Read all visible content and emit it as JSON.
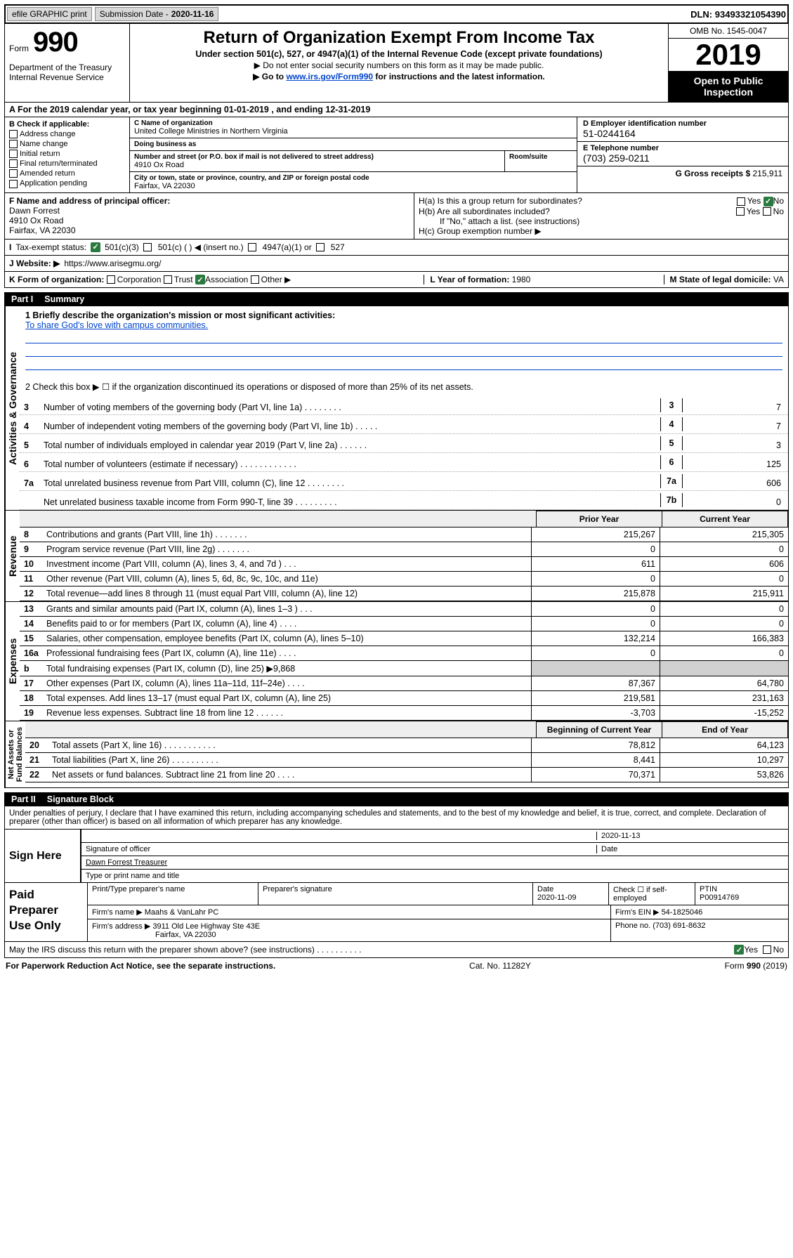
{
  "top_bar": {
    "efile_label": "efile GRAPHIC print",
    "sub_date_label": "Submission Date - ",
    "sub_date": "2020-11-16",
    "dln_label": "DLN: ",
    "dln": "93493321054390"
  },
  "header": {
    "form_word": "Form",
    "form_num": "990",
    "dept": "Department of the Treasury\nInternal Revenue Service",
    "title": "Return of Organization Exempt From Income Tax",
    "subtitle": "Under section 501(c), 527, or 4947(a)(1) of the Internal Revenue Code (except private foundations)",
    "ssn_note": "▶ Do not enter social security numbers on this form as it may be made public.",
    "goto_pre": "▶ Go to ",
    "goto_link": "www.irs.gov/Form990",
    "goto_post": " for instructions and the latest information.",
    "omb": "OMB No. 1545-0047",
    "year": "2019",
    "open": "Open to Public Inspection"
  },
  "period": "A  For the 2019 calendar year, or tax year beginning 01-01-2019    , and ending 12-31-2019",
  "check_if": {
    "header": "B Check if applicable:",
    "items": [
      "Address change",
      "Name change",
      "Initial return",
      "Final return/terminated",
      "Amended return",
      "Application pending"
    ]
  },
  "entity": {
    "name_lbl": "C Name of organization",
    "name": "United College Ministries in Northern Virginia",
    "dba_lbl": "Doing business as",
    "dba": "",
    "addr_lbl": "Number and street (or P.O. box if mail is not delivered to street address)",
    "addr": "4910 Ox Road",
    "room_lbl": "Room/suite",
    "city_lbl": "City or town, state or province, country, and ZIP or foreign postal code",
    "city": "Fairfax, VA  22030"
  },
  "right": {
    "ein_lbl": "D Employer identification number",
    "ein": "51-0244164",
    "tel_lbl": "E Telephone number",
    "tel": "(703) 259-0211",
    "gross_lbl": "G Gross receipts $ ",
    "gross": "215,911"
  },
  "officer": {
    "lbl": "F  Name and address of principal officer:",
    "name": "Dawn Forrest",
    "addr1": "4910 Ox Road",
    "addr2": "Fairfax, VA  22030"
  },
  "group": {
    "ha": "H(a)  Is this a group return for subordinates?",
    "hb": "H(b)  Are all subordinates included?",
    "hb_note": "If \"No,\" attach a list. (see instructions)",
    "hc": "H(c)  Group exemption number ▶",
    "yes": "Yes",
    "no": "No"
  },
  "status": {
    "lbl": "Tax-exempt status:",
    "o1": "501(c)(3)",
    "o2": "501(c) (   ) ◀ (insert no.)",
    "o3": "4947(a)(1) or",
    "o4": "527"
  },
  "website": {
    "lbl": "J   Website: ▶",
    "val": "https://www.arisegmu.org/"
  },
  "form_org": {
    "lbl": "K Form of organization:",
    "corp": "Corporation",
    "trust": "Trust",
    "assoc": "Association",
    "other": "Other ▶",
    "year_lbl": "L Year of formation: ",
    "year": "1980",
    "state_lbl": "M State of legal domicile: ",
    "state": "VA"
  },
  "parts": {
    "p1": "Part I",
    "p1t": "Summary",
    "p2": "Part II",
    "p2t": "Signature Block"
  },
  "summary": {
    "q1": "1   Briefly describe the organization's mission or most significant activities:",
    "mission": "To share God's love with campus communities.",
    "q2": "2    Check this box ▶ ☐  if the organization discontinued its operations or disposed of more than 25% of its net assets.",
    "lines_single": [
      {
        "n": "3",
        "d": "Number of voting members of the governing body (Part VI, line 1a)   .    .    .    .    .    .    .    .",
        "b": "3",
        "v": "7"
      },
      {
        "n": "4",
        "d": "Number of independent voting members of the governing body (Part VI, line 1b)   .    .    .    .    .",
        "b": "4",
        "v": "7"
      },
      {
        "n": "5",
        "d": "Total number of individuals employed in calendar year 2019 (Part V, line 2a)   .    .    .    .    .    .",
        "b": "5",
        "v": "3"
      },
      {
        "n": "6",
        "d": "Total number of volunteers (estimate if necessary)   .    .    .    .    .    .    .    .    .    .    .    .",
        "b": "6",
        "v": "125"
      },
      {
        "n": "7a",
        "d": "Total unrelated business revenue from Part VIII, column (C), line 12   .    .    .    .    .    .    .    .",
        "b": "7a",
        "v": "606"
      },
      {
        "n": "",
        "d": "Net unrelated business taxable income from Form 990-T, line 39   .    .    .    .    .    .    .    .    .",
        "b": "7b",
        "v": "0"
      }
    ],
    "col_hdr": {
      "prior": "Prior Year",
      "current": "Current Year"
    },
    "revenue": [
      {
        "n": "8",
        "d": "Contributions and grants (Part VIII, line 1h)   .    .    .    .    .    .    .",
        "c1": "215,267",
        "c2": "215,305"
      },
      {
        "n": "9",
        "d": "Program service revenue (Part VIII, line 2g)   .    .    .    .    .    .    .",
        "c1": "0",
        "c2": "0"
      },
      {
        "n": "10",
        "d": "Investment income (Part VIII, column (A), lines 3, 4, and 7d )   .    .    .",
        "c1": "611",
        "c2": "606"
      },
      {
        "n": "11",
        "d": "Other revenue (Part VIII, column (A), lines 5, 6d, 8c, 9c, 10c, and 11e)",
        "c1": "0",
        "c2": "0"
      },
      {
        "n": "12",
        "d": "Total revenue—add lines 8 through 11 (must equal Part VIII, column (A), line 12)",
        "c1": "215,878",
        "c2": "215,911"
      }
    ],
    "expenses": [
      {
        "n": "13",
        "d": "Grants and similar amounts paid (Part IX, column (A), lines 1–3 )   .    .    .",
        "c1": "0",
        "c2": "0"
      },
      {
        "n": "14",
        "d": "Benefits paid to or for members (Part IX, column (A), line 4)   .    .    .    .",
        "c1": "0",
        "c2": "0"
      },
      {
        "n": "15",
        "d": "Salaries, other compensation, employee benefits (Part IX, column (A), lines 5–10)",
        "c1": "132,214",
        "c2": "166,383"
      },
      {
        "n": "16a",
        "d": "Professional fundraising fees (Part IX, column (A), line 11e)   .    .    .    .",
        "c1": "0",
        "c2": "0"
      },
      {
        "n": "b",
        "d": "Total fundraising expenses (Part IX, column (D), line 25) ▶9,868",
        "c1": "",
        "c2": "",
        "shaded": true
      },
      {
        "n": "17",
        "d": "Other expenses (Part IX, column (A), lines 11a–11d, 11f–24e)   .    .    .    .",
        "c1": "87,367",
        "c2": "64,780"
      },
      {
        "n": "18",
        "d": "Total expenses. Add lines 13–17 (must equal Part IX, column (A), line 25)",
        "c1": "219,581",
        "c2": "231,163"
      },
      {
        "n": "19",
        "d": "Revenue less expenses. Subtract line 18 from line 12   .    .    .    .    .    .",
        "c1": "-3,703",
        "c2": "-15,252"
      }
    ],
    "net_hdr": {
      "begin": "Beginning of Current Year",
      "end": "End of Year"
    },
    "net": [
      {
        "n": "20",
        "d": "Total assets (Part X, line 16)   .    .    .    .    .    .    .    .    .    .    .",
        "c1": "78,812",
        "c2": "64,123"
      },
      {
        "n": "21",
        "d": "Total liabilities (Part X, line 26)   .    .    .    .    .    .    .    .    .    .",
        "c1": "8,441",
        "c2": "10,297"
      },
      {
        "n": "22",
        "d": "Net assets or fund balances. Subtract line 21 from line 20   .    .    .    .",
        "c1": "70,371",
        "c2": "53,826"
      }
    ],
    "vtabs": {
      "gov": "Activities & Governance",
      "rev": "Revenue",
      "exp": "Expenses",
      "net": "Net Assets or\nFund Balances"
    }
  },
  "sig": {
    "intro": "Under penalties of perjury, I declare that I have examined this return, including accompanying schedules and statements, and to the best of my knowledge and belief, it is true, correct, and complete. Declaration of preparer (other than officer) is based on all information of which preparer has any knowledge.",
    "sign_here": "Sign Here",
    "sig_officer": "Signature of officer",
    "date": "2020-11-13",
    "date_lbl": "Date",
    "officer_name": "Dawn Forrest  Treasurer",
    "type_name": "Type or print name and title"
  },
  "prep": {
    "lbl": "Paid Preparer Use Only",
    "name_lbl": "Print/Type preparer's name",
    "sig_lbl": "Preparer's signature",
    "date_lbl": "Date",
    "date": "2020-11-09",
    "check_lbl": "Check ☐ if self-employed",
    "ptin_lbl": "PTIN",
    "ptin": "P00914769",
    "firm_name_lbl": "Firm's name     ▶",
    "firm_name": "Maahs & VanLahr PC",
    "firm_ein_lbl": "Firm's EIN ▶",
    "firm_ein": "54-1825046",
    "firm_addr_lbl": "Firm's address ▶",
    "firm_addr": "3911 Old Lee Highway Ste 43E",
    "firm_city": "Fairfax, VA  22030",
    "phone_lbl": "Phone no. ",
    "phone": "(703) 691-8632"
  },
  "discuss": {
    "q": "May the IRS discuss this return with the preparer shown above? (see instructions)    .    .    .    .    .    .    .    .    .    .",
    "yes": "Yes",
    "no": "No"
  },
  "footer": {
    "l": "For Paperwork Reduction Act Notice, see the separate instructions.",
    "c": "Cat. No. 11282Y",
    "r": "Form 990 (2019)"
  }
}
